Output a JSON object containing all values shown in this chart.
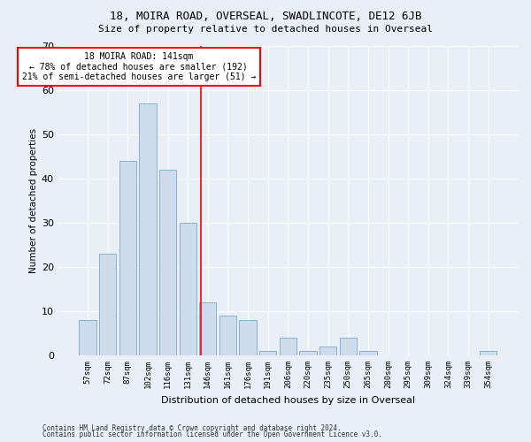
{
  "title": "18, MOIRA ROAD, OVERSEAL, SWADLINCOTE, DE12 6JB",
  "subtitle": "Size of property relative to detached houses in Overseal",
  "xlabel": "Distribution of detached houses by size in Overseal",
  "ylabel": "Number of detached properties",
  "bar_labels": [
    "57sqm",
    "72sqm",
    "87sqm",
    "102sqm",
    "116sqm",
    "131sqm",
    "146sqm",
    "161sqm",
    "176sqm",
    "191sqm",
    "206sqm",
    "220sqm",
    "235sqm",
    "250sqm",
    "265sqm",
    "280sqm",
    "295sqm",
    "309sqm",
    "324sqm",
    "339sqm",
    "354sqm"
  ],
  "bar_values": [
    8,
    23,
    44,
    57,
    42,
    30,
    12,
    9,
    8,
    1,
    4,
    1,
    2,
    4,
    1,
    0,
    0,
    0,
    0,
    0,
    1
  ],
  "bar_color": "#ccdcec",
  "bar_edgecolor": "#8ab0cc",
  "background_color": "#eaeff7",
  "grid_color": "#ffffff",
  "vline_x": 5.67,
  "vline_color": "red",
  "annotation_text": "18 MOIRA ROAD: 141sqm\n← 78% of detached houses are smaller (192)\n21% of semi-detached houses are larger (51) →",
  "annotation_box_color": "white",
  "annotation_box_edgecolor": "red",
  "ylim": [
    0,
    70
  ],
  "yticks": [
    0,
    10,
    20,
    30,
    40,
    50,
    60,
    70
  ],
  "footnote1": "Contains HM Land Registry data © Crown copyright and database right 2024.",
  "footnote2": "Contains public sector information licensed under the Open Government Licence v3.0."
}
